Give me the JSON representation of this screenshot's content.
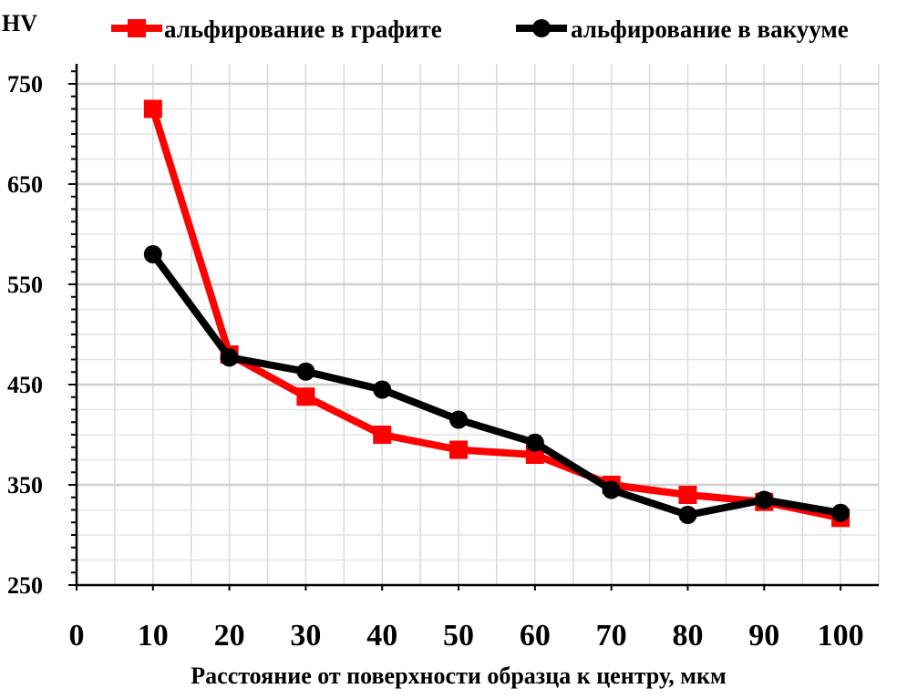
{
  "chart_data": {
    "type": "line",
    "title": "",
    "xlabel": "Расстояние от поверхности образца к центру, мкм",
    "ylabel": "HV",
    "xlim": [
      0,
      105
    ],
    "ylim": [
      250,
      770
    ],
    "x_ticks": [
      0,
      10,
      20,
      30,
      40,
      50,
      60,
      70,
      80,
      90,
      100
    ],
    "y_ticks": [
      250,
      350,
      450,
      550,
      650,
      750
    ],
    "grid": true,
    "legend_position": "top",
    "x": [
      10,
      20,
      30,
      40,
      50,
      60,
      70,
      80,
      90,
      100
    ],
    "series": [
      {
        "name": "альфирование в графите",
        "color": "#ff0000",
        "marker": "square",
        "values": [
          725,
          480,
          438,
          400,
          385,
          380,
          350,
          340,
          333,
          317
        ]
      },
      {
        "name": "альфирование в вакууме",
        "color": "#000000",
        "marker": "circle",
        "values": [
          580,
          477,
          463,
          445,
          415,
          392,
          345,
          320,
          335,
          322
        ]
      }
    ]
  }
}
